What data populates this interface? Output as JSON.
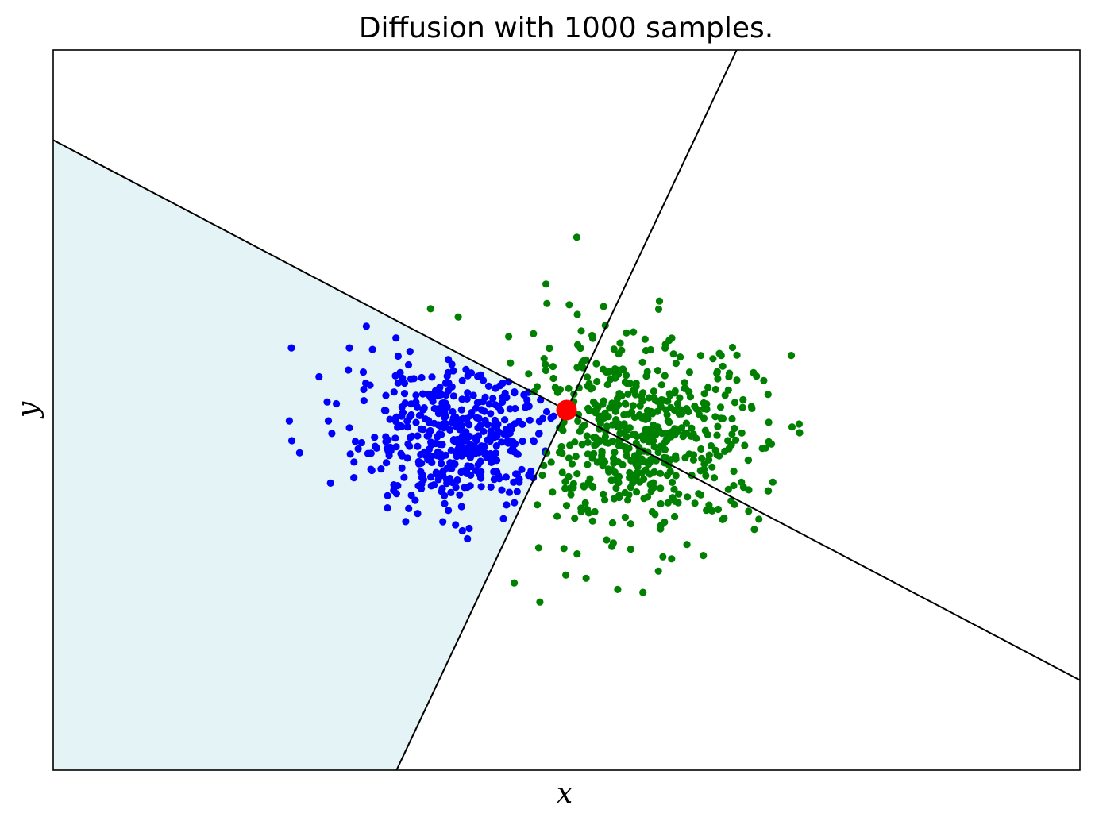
{
  "chart_data": {
    "type": "scatter",
    "title": "Diffusion with 1000 samples.",
    "xlabel": "x",
    "ylabel": "y",
    "xlim": [
      -1.0,
      1.0
    ],
    "ylim": [
      -0.7,
      0.7
    ],
    "xticks": [],
    "yticks": [],
    "grid": false,
    "legend": null,
    "origin_point": {
      "x": 0.0,
      "y": 0.0,
      "color": "#ff0000"
    },
    "boundary_lines": [
      {
        "point": [
          0.0,
          0.0
        ],
        "direction": [
          1.0,
          -0.525
        ],
        "color": "#000000"
      },
      {
        "point": [
          0.0,
          0.0
        ],
        "direction": [
          1.0,
          2.113
        ],
        "color": "#000000"
      }
    ],
    "shaded_region": {
      "color": "#e4f3f6",
      "description_side": "left of both lines"
    },
    "series": [
      {
        "color": "#0000ff",
        "sample_count": 450,
        "center": [
          -0.21,
          -0.05
        ],
        "spread": [
          0.1,
          0.07
        ],
        "points_explicit": [
          [
            -0.536,
            0.121
          ],
          [
            -0.39,
            0.163
          ],
          [
            -0.423,
            0.121
          ],
          [
            -0.378,
            0.118
          ],
          [
            -0.305,
            0.114
          ],
          [
            -0.328,
            0.105
          ],
          [
            -0.425,
            0.078
          ],
          [
            -0.396,
            0.074
          ],
          [
            -0.54,
            -0.021
          ],
          [
            -0.464,
            -0.021
          ],
          [
            -0.52,
            -0.083
          ],
          [
            -0.414,
            -0.101
          ],
          [
            -0.193,
            -0.25
          ],
          [
            -0.29,
            -0.201
          ],
          [
            -0.241,
            -0.217
          ],
          [
            -0.123,
            -0.211
          ]
        ]
      },
      {
        "color": "#008000",
        "sample_count": 550,
        "center": [
          0.14,
          -0.05
        ],
        "spread": [
          0.12,
          0.09
        ],
        "points_explicit": [
          [
            0.02,
            0.336
          ],
          [
            -0.04,
            0.245
          ],
          [
            -0.265,
            0.197
          ],
          [
            -0.211,
            0.181
          ],
          [
            0.181,
            0.212
          ],
          [
            0.37,
            0.066
          ],
          [
            0.453,
            -0.027
          ],
          [
            0.399,
            -0.066
          ],
          [
            0.393,
            -0.157
          ],
          [
            0.355,
            -0.155
          ],
          [
            -0.102,
            -0.336
          ],
          [
            -0.052,
            -0.373
          ],
          [
            0.038,
            -0.327
          ],
          [
            0.179,
            -0.313
          ],
          [
            0.277,
            -0.097
          ],
          [
            0.25,
            -0.181
          ]
        ]
      }
    ]
  }
}
